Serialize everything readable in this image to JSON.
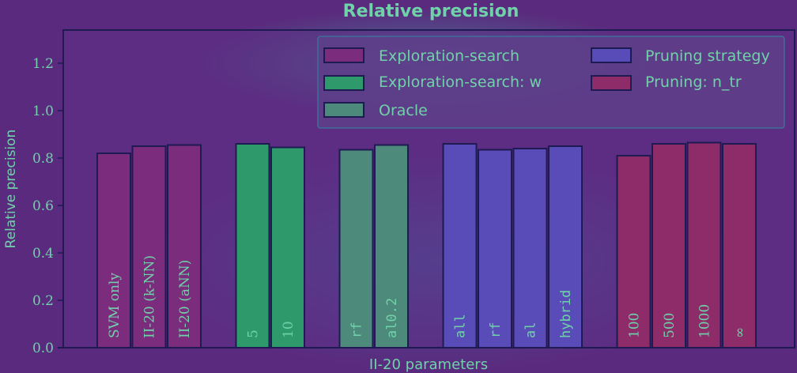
{
  "chart_data": {
    "type": "bar",
    "title": "Relative precision",
    "xlabel": "II-20 parameters",
    "ylabel": "Relative precision",
    "ylim": [
      0,
      1.35
    ],
    "yticks": [
      "0.0",
      "0.2",
      "0.4",
      "0.6",
      "0.8",
      "1.0",
      "1.2"
    ],
    "legend_position": "top-right",
    "series": [
      {
        "name": "Exploration-search",
        "color": "#7b2c7c",
        "categories": [
          "SVM only",
          "II-20 (k-NN)",
          "II-20 (aNN)"
        ],
        "values": [
          0.82,
          0.85,
          0.855
        ]
      },
      {
        "name": "Exploration-search: w",
        "color": "#2e9a6c",
        "categories": [
          "5",
          "10"
        ],
        "values": [
          0.86,
          0.845
        ]
      },
      {
        "name": "Oracle",
        "color": "#4e8a7b",
        "categories": [
          "rf",
          "al0.2"
        ],
        "values": [
          0.835,
          0.855
        ]
      },
      {
        "name": "Pruning strategy",
        "color": "#5a4cb8",
        "categories": [
          "all",
          "rf",
          "al",
          "hybrid"
        ],
        "values": [
          0.86,
          0.835,
          0.84,
          0.85
        ]
      },
      {
        "name": "Pruning: n_tr",
        "color": "#8e2c6a",
        "categories": [
          "100",
          "500",
          "1000",
          "∞"
        ],
        "values": [
          0.81,
          0.86,
          0.865,
          0.86
        ]
      }
    ]
  },
  "colors": {
    "background": "#5a2a7e",
    "axes_face": "#5a2a7e",
    "axis_line": "#1e1a52",
    "text": "#6fd2a8"
  }
}
